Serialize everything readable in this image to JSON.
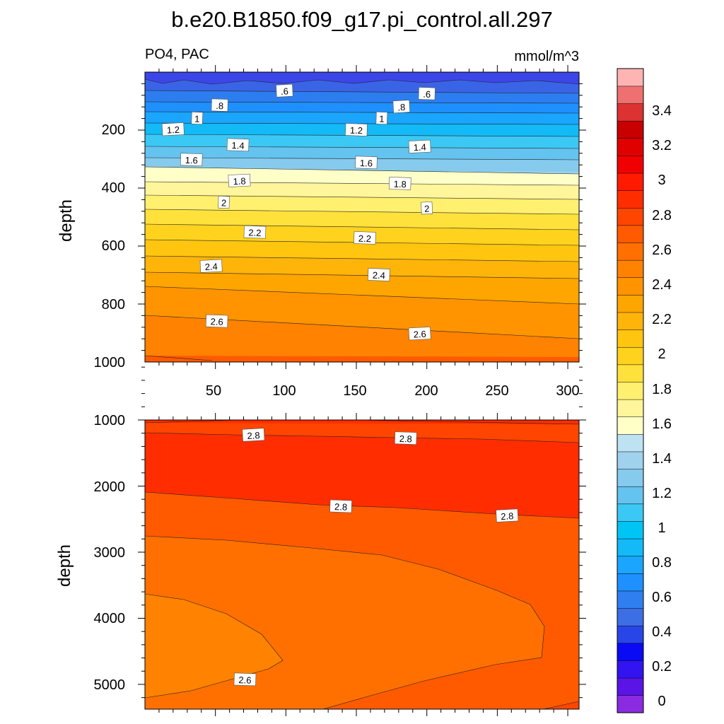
{
  "chart_data": {
    "type": "contour",
    "title": "b.e20.B1850.f09_g17.pi_control.all.297",
    "left_string": "PO4, PAC",
    "right_string": "mmol/m^3",
    "ylabel": "depth",
    "colorbar": {
      "labels": [
        "0",
        "0.2",
        "0.4",
        "0.6",
        "0.8",
        "1",
        "1.2",
        "1.4",
        "1.6",
        "1.8",
        "2",
        "2.2",
        "2.4",
        "2.6",
        "2.8",
        "3",
        "3.2",
        "3.4"
      ],
      "colors": [
        "#8a2be2",
        "#5a14e6",
        "#3214f0",
        "#0a0af5",
        "#2846e8",
        "#3c6ee6",
        "#2f7ff0",
        "#1e90ff",
        "#1aa5ff",
        "#13baf7",
        "#00c4f5",
        "#3cc8f5",
        "#64c3ef",
        "#86cbed",
        "#a0d2ee",
        "#bfe2f3",
        "#ffffc8",
        "#fff59a",
        "#fff070",
        "#ffe13c",
        "#ffd21e",
        "#ffc50f",
        "#ffb40a",
        "#ffa500",
        "#ff9400",
        "#ff8200",
        "#ff7000",
        "#ff5a00",
        "#ff4500",
        "#ff2d00",
        "#ff1a00",
        "#f00000",
        "#e00000",
        "#c80000",
        "#dc3232",
        "#ee7070",
        "#ffb4b4"
      ]
    },
    "panels": [
      {
        "name": "upper",
        "xticks": [
          "50",
          "100",
          "150",
          "200",
          "250",
          "300"
        ],
        "xlim": [
          0,
          308
        ],
        "yticks": [
          "200",
          "400",
          "600",
          "800",
          "1000"
        ],
        "ylim": [
          1000,
          0
        ],
        "contour_labels": [
          {
            "text": ".6",
            "x": 99,
            "y": 65
          },
          {
            "text": ".6",
            "x": 200,
            "y": 75
          },
          {
            "text": ".8",
            "x": 53,
            "y": 115
          },
          {
            "text": ".8",
            "x": 182,
            "y": 120
          },
          {
            "text": "1",
            "x": 37,
            "y": 160
          },
          {
            "text": "1",
            "x": 168,
            "y": 160
          },
          {
            "text": "1.2",
            "x": 20,
            "y": 198
          },
          {
            "text": "1.2",
            "x": 150,
            "y": 200
          },
          {
            "text": "1.4",
            "x": 66,
            "y": 252
          },
          {
            "text": "1.4",
            "x": 195,
            "y": 258
          },
          {
            "text": "1.6",
            "x": 33,
            "y": 303
          },
          {
            "text": "1.6",
            "x": 157,
            "y": 313
          },
          {
            "text": "1.8",
            "x": 67,
            "y": 375
          },
          {
            "text": "1.8",
            "x": 181,
            "y": 385
          },
          {
            "text": "2",
            "x": 56,
            "y": 450
          },
          {
            "text": "2",
            "x": 200,
            "y": 470
          },
          {
            "text": "2.2",
            "x": 78,
            "y": 553
          },
          {
            "text": "2.2",
            "x": 156,
            "y": 573
          },
          {
            "text": "2.4",
            "x": 47,
            "y": 670
          },
          {
            "text": "2.4",
            "x": 166,
            "y": 700
          },
          {
            "text": "2.6",
            "x": 51,
            "y": 860
          },
          {
            "text": "2.6",
            "x": 195,
            "y": 903
          }
        ]
      },
      {
        "name": "lower",
        "xticks": [],
        "xlim": [
          0,
          308
        ],
        "yticks": [
          "1000",
          "2000",
          "3000",
          "4000",
          "5000"
        ],
        "ylim": [
          5375,
          1000
        ],
        "contour_labels": [
          {
            "text": "2.8",
            "x": 77,
            "y": 1230
          },
          {
            "text": "2.8",
            "x": 185,
            "y": 1280
          },
          {
            "text": "2.8",
            "x": 139,
            "y": 2310
          },
          {
            "text": "2.8",
            "x": 257,
            "y": 2450
          },
          {
            "text": "2.6",
            "x": 71,
            "y": 4930
          }
        ]
      }
    ]
  }
}
